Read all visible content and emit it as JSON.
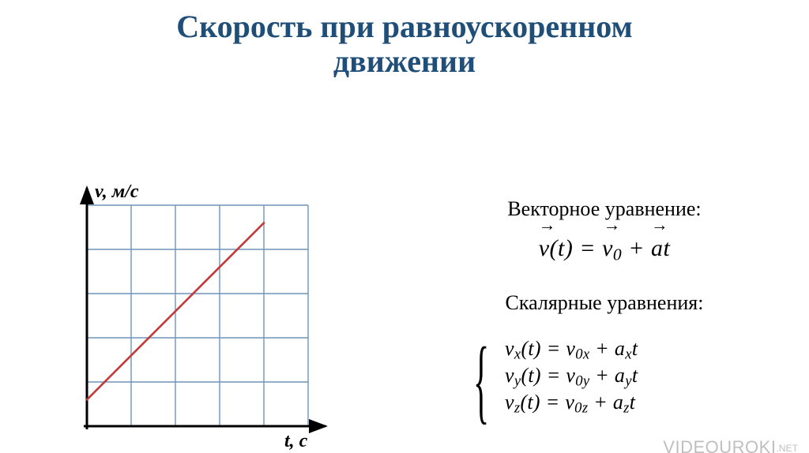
{
  "title": {
    "line1": "Скорость при равноускоренном",
    "line2": "движении",
    "color": "#1f4e79",
    "fontsize": 40
  },
  "chart": {
    "type": "line",
    "x_axis_label": "t, с",
    "y_axis_label": "v, м/с",
    "axis_label_fontsize": 24,
    "axis_label_color": "#000000",
    "grid_cols": 5,
    "grid_rows": 5,
    "cell_size": 56,
    "grid_color": "#6f94b8",
    "grid_stroke": 1.4,
    "axis_color": "#000000",
    "axis_stroke": 3,
    "background_color": "#ffffff",
    "line_color": "#c33a3a",
    "line_stroke": 2.6,
    "line_points": [
      {
        "x": 0.0,
        "y": 0.6
      },
      {
        "x": 4.0,
        "y": 4.6
      }
    ]
  },
  "equations": {
    "vector_label": "Векторное уравнение:",
    "vector_eq_v": "v",
    "vector_eq_t": "(t) = ",
    "vector_eq_v0": "v",
    "vector_eq_v0_sub": "0",
    "vector_eq_plus": " + ",
    "vector_eq_a": "a",
    "vector_eq_at": "t",
    "scalar_label": "Скалярные уравнения:",
    "scalar_lines": [
      {
        "var": "v",
        "sub1": "x",
        "mid": "(t) = v",
        "sub2": "0x",
        "mid2": " + a",
        "sub3": "x",
        "end": "t"
      },
      {
        "var": "v",
        "sub1": "y",
        "mid": "(t) = v",
        "sub2": "0y",
        "mid2": " + a",
        "sub3": "y",
        "end": "t"
      },
      {
        "var": "v",
        "sub1": "z",
        "mid": "(t) = v",
        "sub2": "0z",
        "mid2": " + a",
        "sub3": "z",
        "end": "t"
      }
    ],
    "label_fontsize": 26,
    "eq_fontsize": 30,
    "scalar_fontsize": 26,
    "text_color": "#000000"
  },
  "watermark": {
    "text_main": "VIDEOUROKI",
    "text_suffix": ".NET",
    "color": "#bfbfbf",
    "fontsize": 22
  }
}
